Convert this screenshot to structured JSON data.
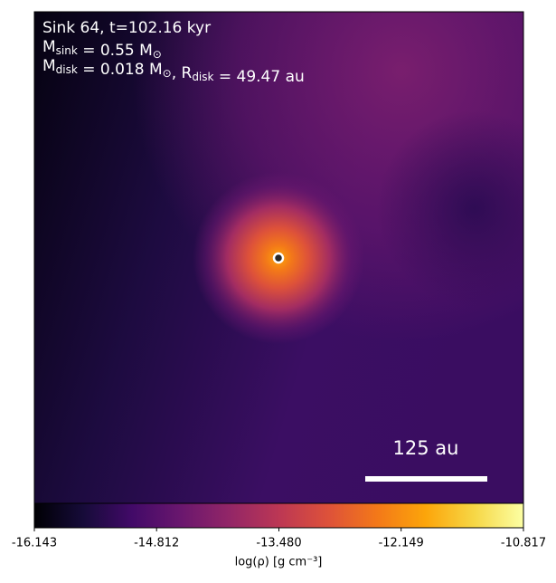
{
  "chart_data": {
    "type": "density-map",
    "annotations": [
      [
        "Sink 64, t=102.16 kyr"
      ],
      [
        "M",
        {
          "sub": "sink"
        },
        " = 0.55 M",
        {
          "sub": "⊙"
        }
      ],
      [
        "M",
        {
          "sub": "disk"
        },
        " = 0.018 M",
        {
          "sub": "⊙"
        },
        ", R",
        {
          "sub": "disk"
        },
        " = 49.47 au"
      ]
    ],
    "scale_bar": "125 au",
    "colorbar": {
      "label": "log(ρ) [g cm⁻³]",
      "lim": [
        -16.143,
        -10.817
      ],
      "ticks": [
        -16.143,
        -14.812,
        {
          "value": -13.48,
          "label": "-13.480"
        },
        -12.149,
        -10.817
      ]
    }
  }
}
